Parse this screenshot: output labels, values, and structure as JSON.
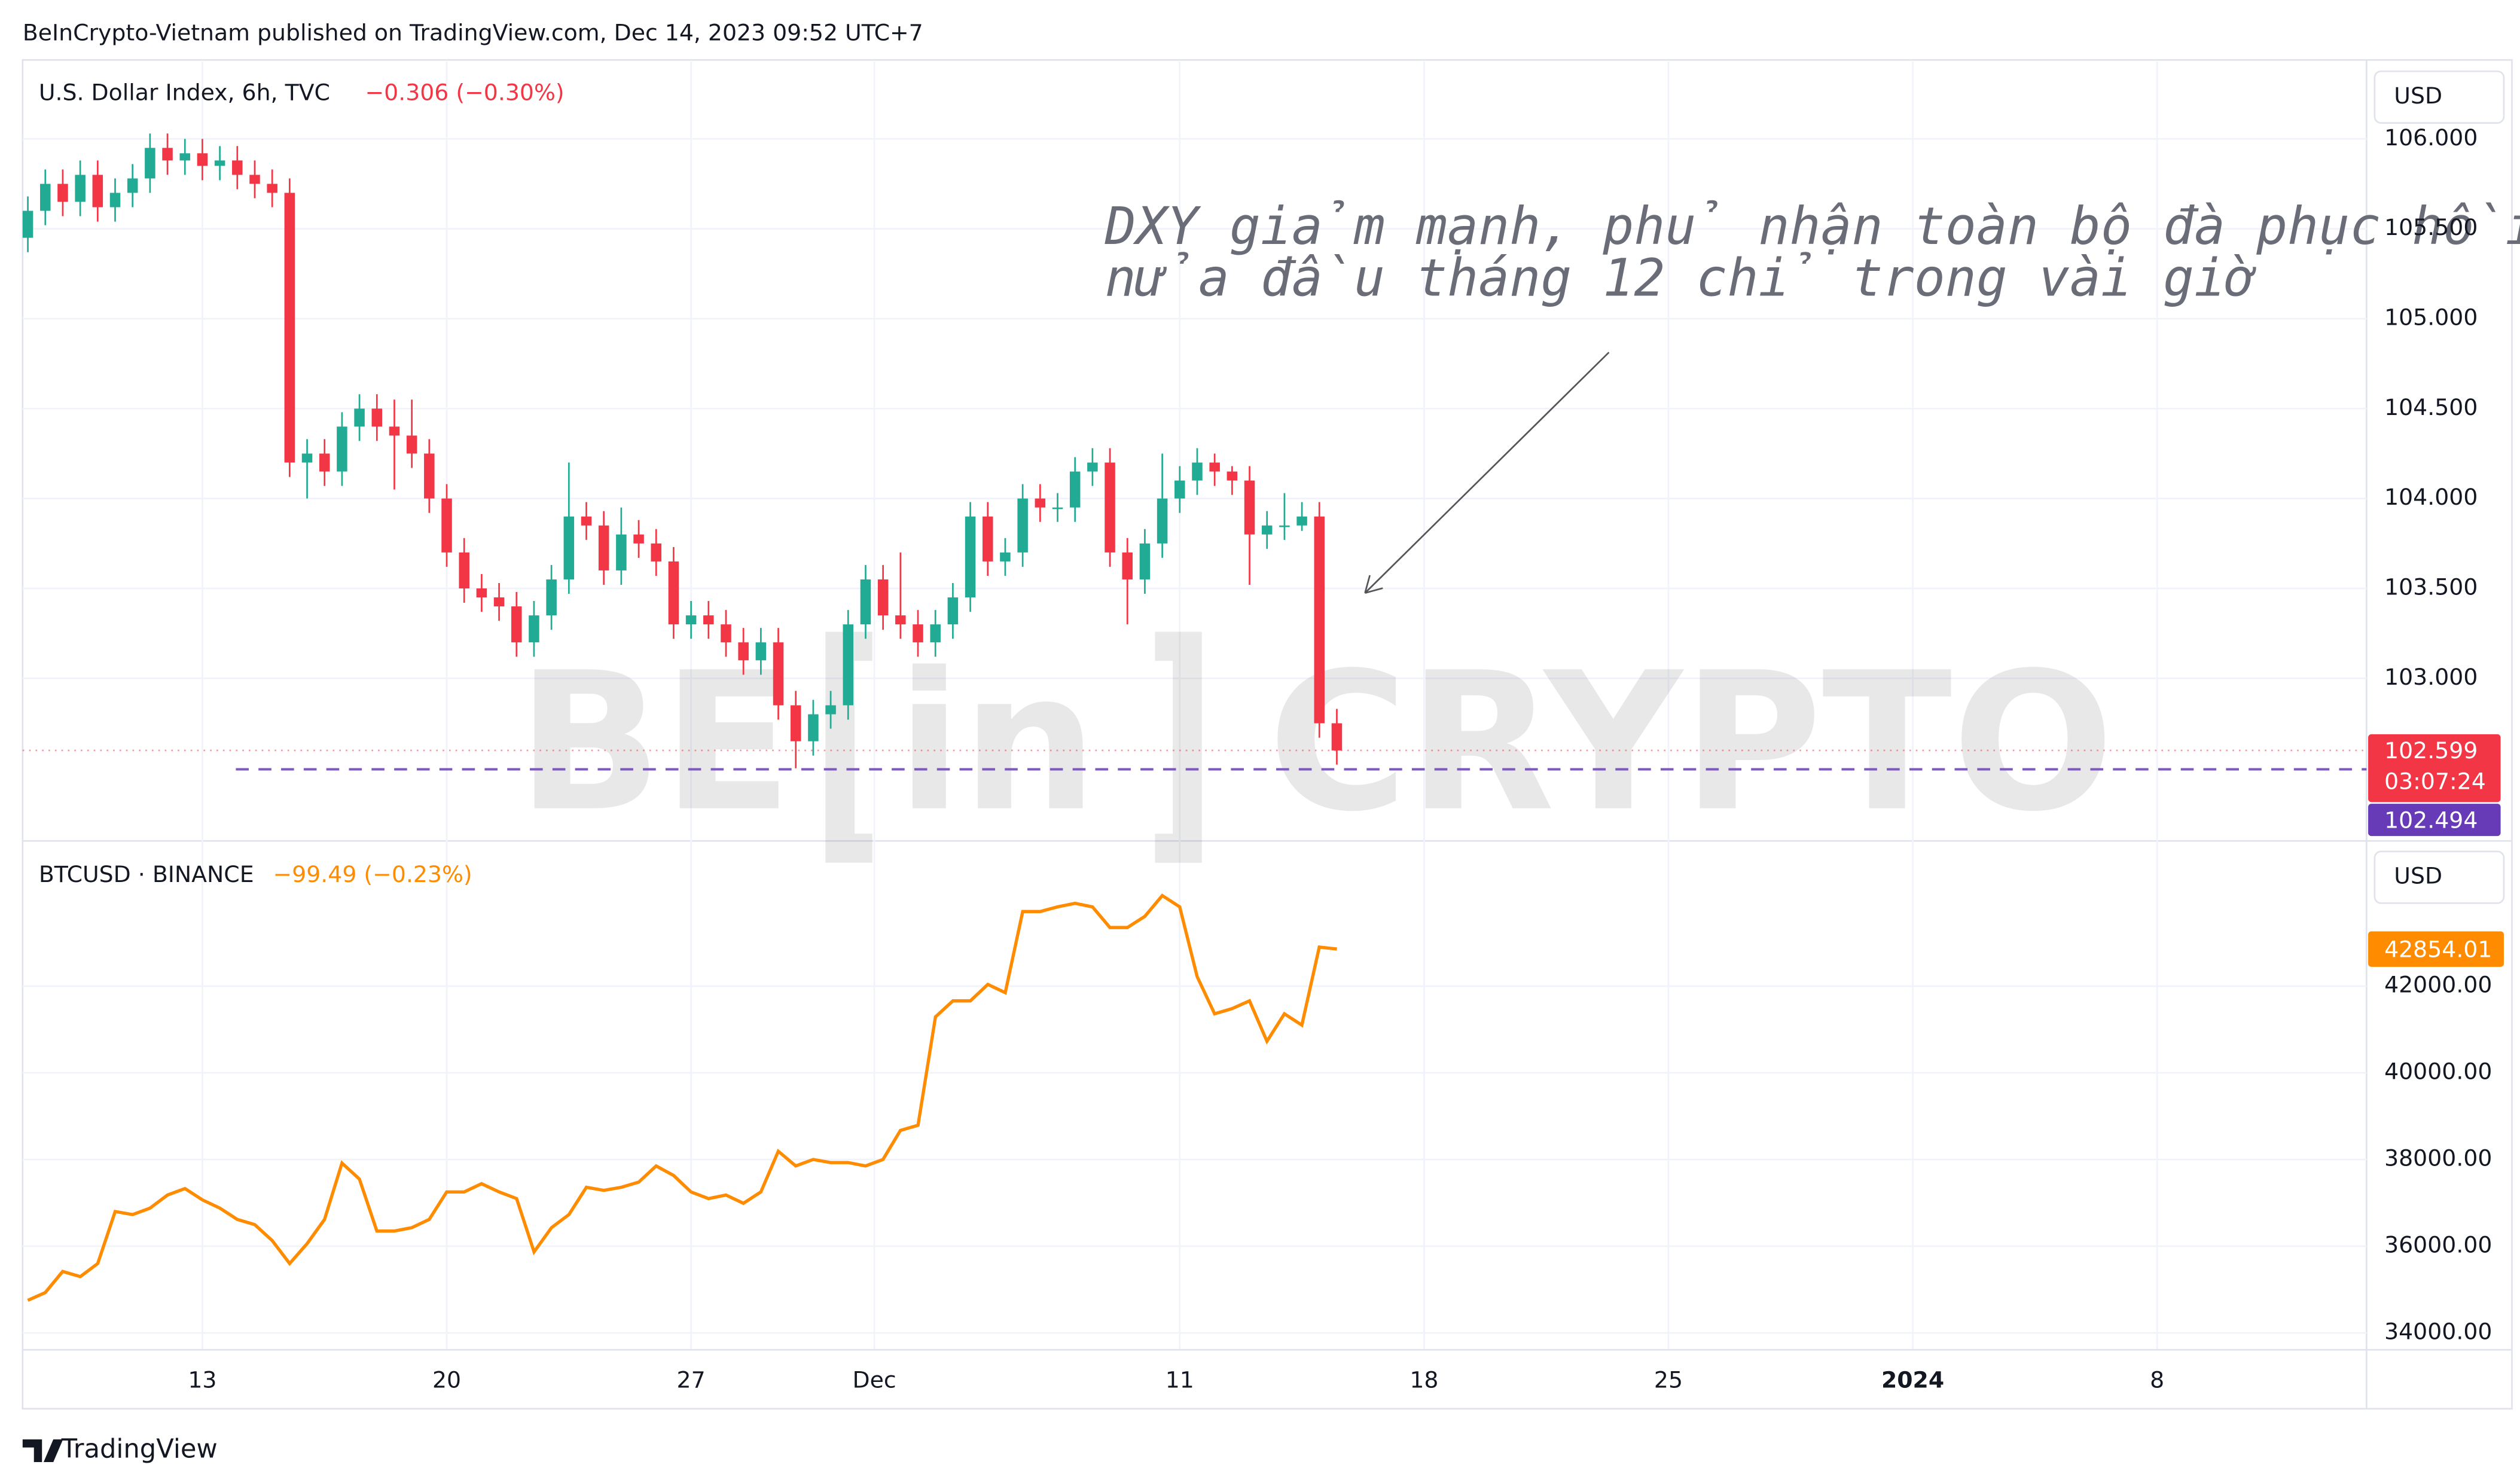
{
  "header": "BeInCrypto-Vietnam published on TradingView.com, Dec 14, 2023 09:52 UTC+7",
  "footer": "TradingView",
  "watermark": [
    "BE",
    "in",
    "CRYPTO"
  ],
  "annotation": [
    "DXY giảm mạnh, phủ nhận toàn bộ đà phục hồi",
    "nửa đầu tháng 12 chỉ trong vài giờ"
  ],
  "xticks": [
    {
      "value": 10,
      "label": "13"
    },
    {
      "value": 24,
      "label": "20"
    },
    {
      "value": 38,
      "label": "27"
    },
    {
      "value": 48.5,
      "label": "Dec"
    },
    {
      "value": 66,
      "label": "11"
    },
    {
      "value": 80,
      "label": "18"
    },
    {
      "value": 94,
      "label": "25"
    },
    {
      "value": 108,
      "label": "2024"
    },
    {
      "value": 122,
      "label": "8"
    }
  ],
  "xlim": [
    -0.3,
    134
  ],
  "chart_data": [
    {
      "type": "candlestick",
      "title": "U.S. Dollar Index, 6h, TVC",
      "change": "−0.306 (−0.30%)",
      "currency": "USD",
      "up_color": "#22ab94",
      "down_color": "#f23645",
      "ylim": [
        102.1,
        106.43
      ],
      "yticks": [
        {
          "value": 103,
          "label": "103.000"
        },
        {
          "value": 103.5,
          "label": "103.500"
        },
        {
          "value": 104,
          "label": "104.000"
        },
        {
          "value": 104.5,
          "label": "104.500"
        },
        {
          "value": 105,
          "label": "105.000"
        },
        {
          "value": 105.5,
          "label": "105.500"
        },
        {
          "value": 106,
          "label": "106.000"
        }
      ],
      "countdown": "03:07:24",
      "hline": 102.494,
      "ohlc": [
        [
          105.45,
          105.68,
          105.37,
          105.6
        ],
        [
          105.6,
          105.83,
          105.52,
          105.75
        ],
        [
          105.75,
          105.83,
          105.57,
          105.65
        ],
        [
          105.65,
          105.88,
          105.57,
          105.8
        ],
        [
          105.8,
          105.88,
          105.54,
          105.62
        ],
        [
          105.62,
          105.78,
          105.54,
          105.7
        ],
        [
          105.7,
          105.86,
          105.62,
          105.78
        ],
        [
          105.78,
          106.03,
          105.7,
          105.95
        ],
        [
          105.95,
          106.03,
          105.8,
          105.88
        ],
        [
          105.88,
          106,
          105.8,
          105.92
        ],
        [
          105.92,
          106,
          105.77,
          105.85
        ],
        [
          105.85,
          105.96,
          105.77,
          105.88
        ],
        [
          105.88,
          105.96,
          105.72,
          105.8
        ],
        [
          105.8,
          105.88,
          105.67,
          105.75
        ],
        [
          105.75,
          105.83,
          105.62,
          105.7
        ],
        [
          105.7,
          105.78,
          104.12,
          104.2
        ],
        [
          104.2,
          104.33,
          104,
          104.25
        ],
        [
          104.25,
          104.33,
          104.07,
          104.15
        ],
        [
          104.15,
          104.48,
          104.07,
          104.4
        ],
        [
          104.4,
          104.58,
          104.32,
          104.5
        ],
        [
          104.5,
          104.58,
          104.32,
          104.4
        ],
        [
          104.4,
          104.55,
          104.05,
          104.35
        ],
        [
          104.35,
          104.55,
          104.17,
          104.25
        ],
        [
          104.25,
          104.33,
          103.92,
          104
        ],
        [
          104,
          104.08,
          103.62,
          103.7
        ],
        [
          103.7,
          103.78,
          103.42,
          103.5
        ],
        [
          103.5,
          103.58,
          103.37,
          103.45
        ],
        [
          103.45,
          103.53,
          103.32,
          103.4
        ],
        [
          103.4,
          103.48,
          103.12,
          103.2
        ],
        [
          103.2,
          103.43,
          103.12,
          103.35
        ],
        [
          103.35,
          103.63,
          103.27,
          103.55
        ],
        [
          103.55,
          104.2,
          103.47,
          103.9
        ],
        [
          103.9,
          103.98,
          103.77,
          103.85
        ],
        [
          103.85,
          103.93,
          103.52,
          103.6
        ],
        [
          103.6,
          103.95,
          103.52,
          103.8
        ],
        [
          103.8,
          103.88,
          103.67,
          103.75
        ],
        [
          103.75,
          103.83,
          103.57,
          103.65
        ],
        [
          103.65,
          103.73,
          103.22,
          103.3
        ],
        [
          103.3,
          103.43,
          103.22,
          103.35
        ],
        [
          103.35,
          103.43,
          103.22,
          103.3
        ],
        [
          103.3,
          103.38,
          103.12,
          103.2
        ],
        [
          103.2,
          103.28,
          103.02,
          103.1
        ],
        [
          103.1,
          103.28,
          103.02,
          103.2
        ],
        [
          103.2,
          103.28,
          102.77,
          102.85
        ],
        [
          102.85,
          102.93,
          102.5,
          102.65
        ],
        [
          102.65,
          102.88,
          102.57,
          102.8
        ],
        [
          102.8,
          102.93,
          102.72,
          102.85
        ],
        [
          102.85,
          103.38,
          102.77,
          103.3
        ],
        [
          103.3,
          103.63,
          103.22,
          103.55
        ],
        [
          103.55,
          103.63,
          103.27,
          103.35
        ],
        [
          103.35,
          103.7,
          103.22,
          103.3
        ],
        [
          103.3,
          103.38,
          103.12,
          103.2
        ],
        [
          103.2,
          103.38,
          103.12,
          103.3
        ],
        [
          103.3,
          103.53,
          103.22,
          103.45
        ],
        [
          103.45,
          103.98,
          103.37,
          103.9
        ],
        [
          103.9,
          103.98,
          103.57,
          103.65
        ],
        [
          103.65,
          103.78,
          103.57,
          103.7
        ],
        [
          103.7,
          104.08,
          103.62,
          104
        ],
        [
          104,
          104.08,
          103.87,
          103.95
        ],
        [
          103.95,
          104.03,
          103.87,
          103.95
        ],
        [
          103.95,
          104.23,
          103.87,
          104.15
        ],
        [
          104.15,
          104.28,
          104.07,
          104.2
        ],
        [
          104.2,
          104.28,
          103.62,
          103.7
        ],
        [
          103.7,
          103.78,
          103.3,
          103.55
        ],
        [
          103.55,
          103.83,
          103.47,
          103.75
        ],
        [
          103.75,
          104.25,
          103.67,
          104
        ],
        [
          104,
          104.18,
          103.92,
          104.1
        ],
        [
          104.1,
          104.28,
          104.02,
          104.2
        ],
        [
          104.2,
          104.25,
          104.07,
          104.15
        ],
        [
          104.15,
          104.18,
          104.02,
          104.1
        ],
        [
          104.1,
          104.18,
          103.52,
          103.8
        ],
        [
          103.8,
          103.93,
          103.72,
          103.85
        ],
        [
          103.85,
          104.03,
          103.77,
          103.85
        ],
        [
          103.85,
          103.98,
          103.82,
          103.9
        ],
        [
          103.9,
          103.98,
          102.67,
          102.75
        ],
        [
          102.75,
          102.83,
          102.52,
          102.599
        ]
      ]
    },
    {
      "type": "line",
      "title": "BTCUSD · BINANCE",
      "change": "−99.49 (−0.23%)",
      "currency": "USD",
      "ylim": [
        33630,
        45330
      ],
      "yticks": [
        {
          "value": 34000,
          "label": "34000.00"
        },
        {
          "value": 36000,
          "label": "36000.00"
        },
        {
          "value": 38000,
          "label": "38000.00"
        },
        {
          "value": 40000,
          "label": "40000.00"
        },
        {
          "value": 42000,
          "label": "42000.00"
        }
      ],
      "series": [
        {
          "name": "BTCUSD",
          "color": "#ff8c00",
          "values": [
            34750,
            34930,
            35420,
            35300,
            35600,
            36800,
            36730,
            36880,
            37180,
            37330,
            37070,
            36880,
            36620,
            36500,
            36130,
            35600,
            36060,
            36620,
            37920,
            37550,
            36350,
            36350,
            36430,
            36620,
            37250,
            37250,
            37440,
            37250,
            37100,
            35870,
            36430,
            36730,
            37360,
            37290,
            37360,
            37480,
            37850,
            37630,
            37250,
            37100,
            37180,
            36990,
            37250,
            38190,
            37850,
            38000,
            37930,
            37930,
            37850,
            38000,
            38670,
            38790,
            41290,
            41660,
            41660,
            42040,
            41850,
            43720,
            43720,
            43830,
            43910,
            43830,
            43350,
            43350,
            43610,
            44090,
            43830,
            42220,
            41360,
            41480,
            41660,
            40730,
            41360,
            41100,
            42900,
            42854.01
          ]
        }
      ]
    }
  ]
}
